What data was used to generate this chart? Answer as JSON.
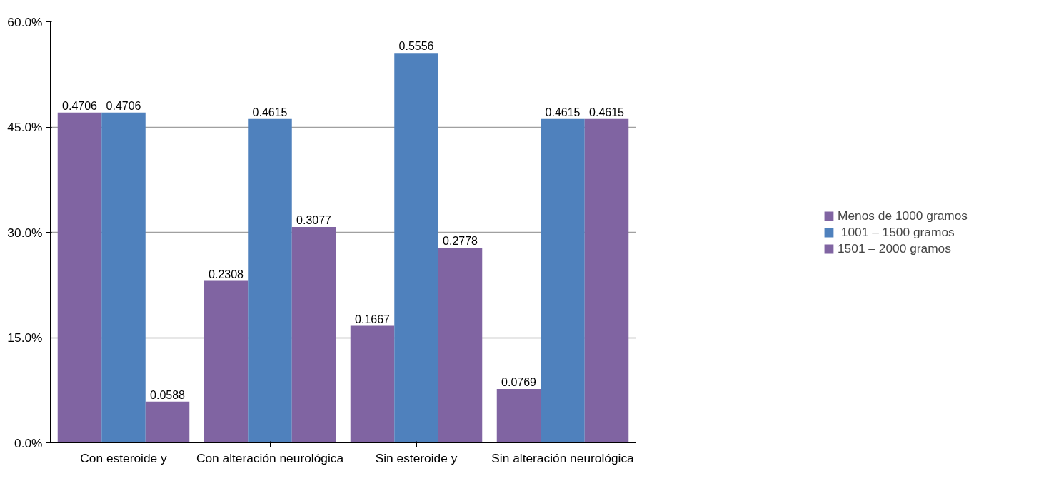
{
  "chart_data": {
    "type": "bar",
    "categories": [
      "Con esteroide y",
      "Con alteración neurológica",
      "Sin esteroide y",
      "Sin alteración neurológica"
    ],
    "series": [
      {
        "name": "Menos de 1000 gramos",
        "color": "#8064a2",
        "values": [
          0.4706,
          0.2308,
          0.1667,
          0.0769
        ]
      },
      {
        "name": " 1001 – 1500 gramos",
        "color": "#4f81bd",
        "values": [
          0.4706,
          0.4615,
          0.5556,
          0.4615
        ]
      },
      {
        "name": "1501 – 2000 gramos",
        "color": "#8064a2",
        "values": [
          0.0588,
          0.3077,
          0.2778,
          0.4615
        ]
      }
    ],
    "ylim": [
      0,
      0.6
    ],
    "yticks": [
      {
        "value": 0,
        "label": "0.0%"
      },
      {
        "value": 0.15,
        "label": "15.0%"
      },
      {
        "value": 0.3,
        "label": "30.0%"
      },
      {
        "value": 0.45,
        "label": "45.0%"
      },
      {
        "value": 0.6,
        "label": "60.0%"
      }
    ],
    "grid": "y",
    "legend": "right",
    "data_labels": true
  }
}
